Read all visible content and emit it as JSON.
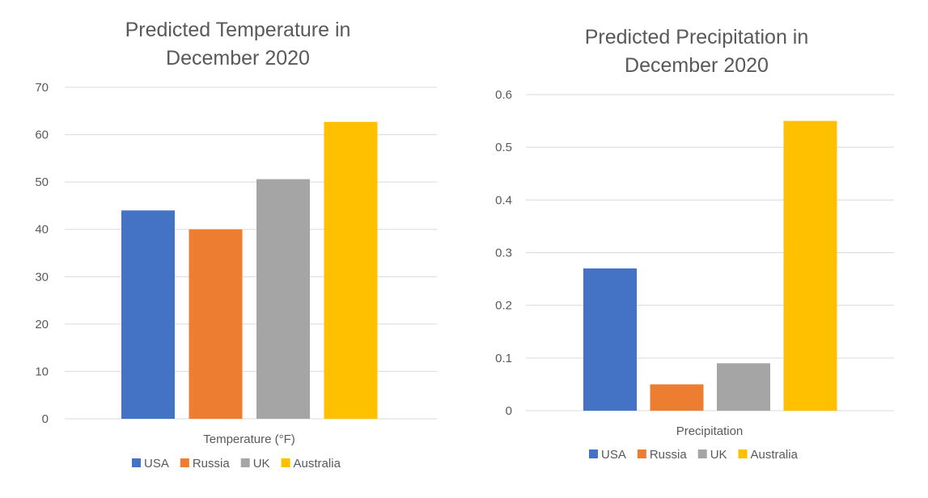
{
  "chart_data": [
    {
      "type": "bar",
      "title_lines": [
        "Predicted Temperature in",
        "December 2020"
      ],
      "xlabel": "Temperature (°F)",
      "ylabel": "",
      "ylim": [
        0,
        70
      ],
      "yticks": [
        "0",
        "10",
        "20",
        "30",
        "40",
        "50",
        "60",
        "70"
      ],
      "grid": true,
      "legend_position": "bottom",
      "series": [
        {
          "name": "USA",
          "value": 44,
          "color": "#4472C4"
        },
        {
          "name": "Russia",
          "value": 40,
          "color": "#ED7D31"
        },
        {
          "name": "UK",
          "value": 50.6,
          "color": "#A5A5A5"
        },
        {
          "name": "Australia",
          "value": 62.7,
          "color": "#FFC000"
        }
      ]
    },
    {
      "type": "bar",
      "title_lines": [
        "Predicted Precipitation in",
        "December 2020"
      ],
      "xlabel": "Precipitation",
      "ylabel": "",
      "ylim": [
        0,
        0.6
      ],
      "yticks": [
        "0",
        "0.1",
        "0.2",
        "0.3",
        "0.4",
        "0.5",
        "0.6"
      ],
      "grid": true,
      "legend_position": "bottom",
      "series": [
        {
          "name": "USA",
          "value": 0.27,
          "color": "#4472C4"
        },
        {
          "name": "Russia",
          "value": 0.05,
          "color": "#ED7D31"
        },
        {
          "name": "UK",
          "value": 0.09,
          "color": "#A5A5A5"
        },
        {
          "name": "Australia",
          "value": 0.55,
          "color": "#FFC000"
        }
      ]
    }
  ]
}
